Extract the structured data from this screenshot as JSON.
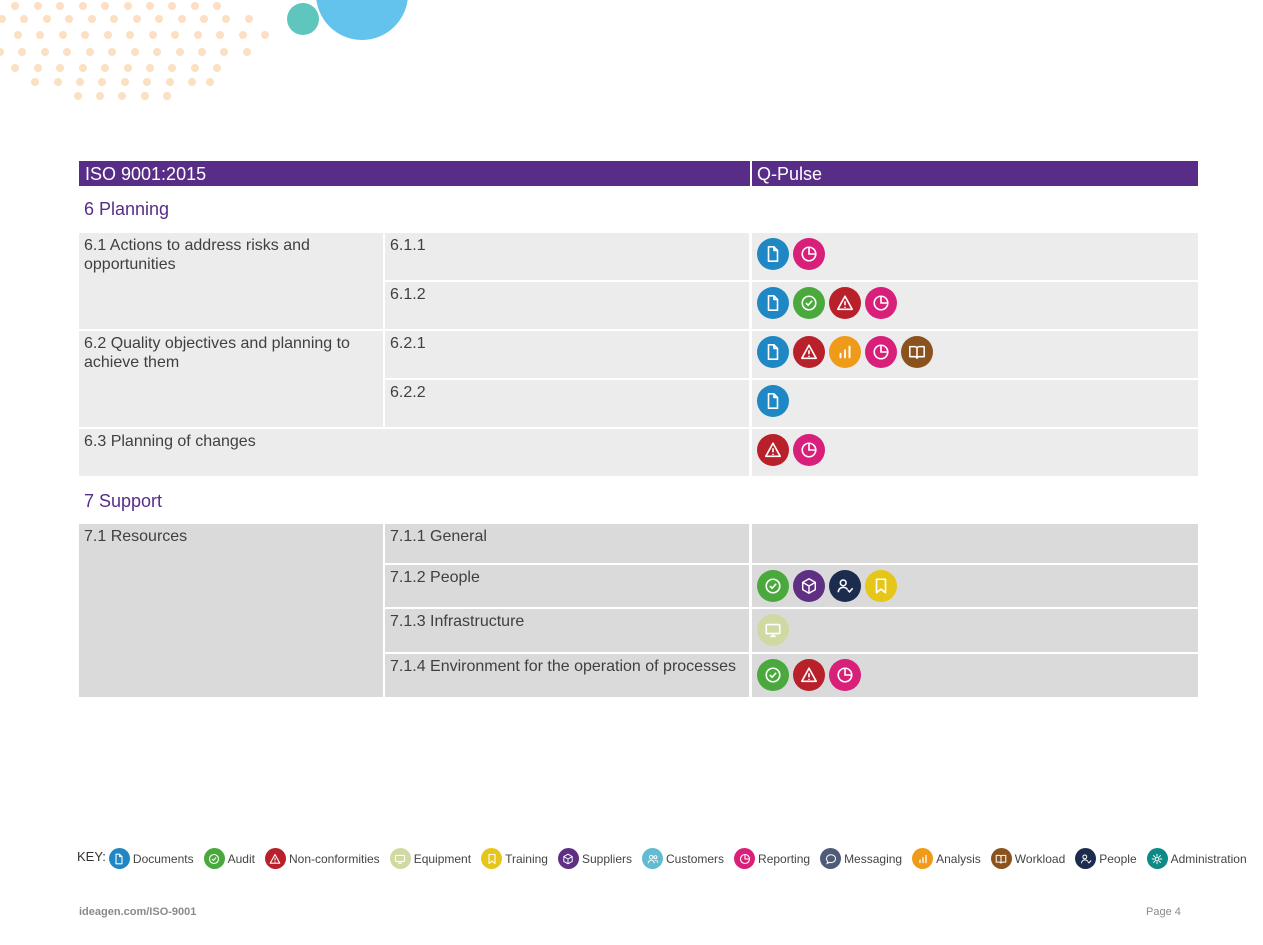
{
  "header": {
    "left": "ISO 9001:2015",
    "right": "Q-Pulse"
  },
  "colors": {
    "documents": "#1f87c3",
    "audit": "#4aa93d",
    "nonconformities": "#b8202a",
    "equipment": "#cfdaa2",
    "training": "#e6c619",
    "suppliers": "#5e2f82",
    "customers": "#62bbd0",
    "reporting": "#d81f7a",
    "messaging": "#4f5c78",
    "analysis": "#f09a1a",
    "workload": "#8a531e",
    "people": "#1c2c4f",
    "administration": "#0c8a86",
    "header": "#582d87"
  },
  "sections": [
    {
      "title": "6 Planning",
      "rows": [
        {
          "clause": "6.1 Actions to address risks and opportunities",
          "sub": "6.1.1",
          "icons": [
            "documents",
            "reporting"
          ]
        },
        {
          "clause": "",
          "sub": "6.1.2",
          "icons": [
            "documents",
            "audit",
            "nonconformities",
            "reporting"
          ]
        },
        {
          "clause": "6.2 Quality objectives and planning to achieve them",
          "sub": "6.2.1",
          "icons": [
            "documents",
            "nonconformities",
            "analysis",
            "reporting",
            "workload"
          ]
        },
        {
          "clause": "",
          "sub": "6.2.2",
          "icons": [
            "documents"
          ]
        },
        {
          "clause": "6.3 Planning of changes",
          "sub": "",
          "icons": [
            "nonconformities",
            "reporting"
          ]
        }
      ]
    },
    {
      "title": "7 Support",
      "rows": [
        {
          "clause": "7.1 Resources",
          "sub": "7.1.1 General",
          "icons": []
        },
        {
          "clause": "",
          "sub": "7.1.2 People",
          "icons": [
            "audit",
            "suppliers",
            "people",
            "training"
          ]
        },
        {
          "clause": "",
          "sub": "7.1.3 Infrastructure",
          "icons": [
            "equipment"
          ]
        },
        {
          "clause": "",
          "sub": "7.1.4 Environment for the operation of processes",
          "icons": [
            "audit",
            "nonconformities",
            "reporting"
          ]
        }
      ]
    }
  ],
  "key": {
    "label": "KEY:",
    "items": [
      {
        "icon": "documents",
        "label": "Documents"
      },
      {
        "icon": "audit",
        "label": "Audit"
      },
      {
        "icon": "nonconformities",
        "label": "Non-conformities"
      },
      {
        "icon": "equipment",
        "label": "Equipment"
      },
      {
        "icon": "training",
        "label": "Training"
      },
      {
        "icon": "suppliers",
        "label": "Suppliers"
      },
      {
        "icon": "customers",
        "label": "Customers"
      },
      {
        "icon": "reporting",
        "label": "Reporting"
      },
      {
        "icon": "messaging",
        "label": "Messaging"
      },
      {
        "icon": "analysis",
        "label": "Analysis"
      },
      {
        "icon": "workload",
        "label": "Workload"
      },
      {
        "icon": "people",
        "label": "People"
      },
      {
        "icon": "administration",
        "label": "Administration"
      }
    ]
  },
  "footer": {
    "url": "ideagen.com/ISO-9001",
    "page": "Page 4"
  }
}
